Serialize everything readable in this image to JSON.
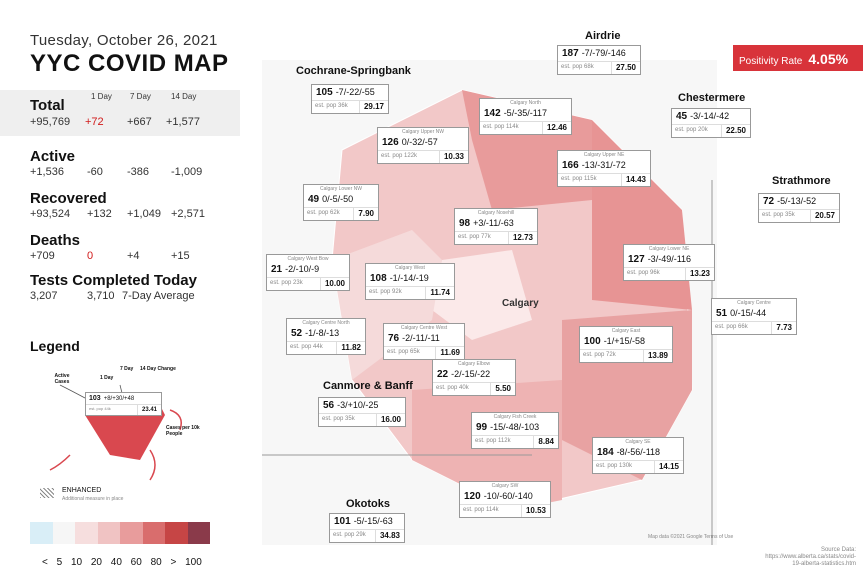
{
  "header": {
    "date": "Tuesday, October 26, 2021",
    "title": "YYC COVID MAP"
  },
  "stats": {
    "col_headers": [
      "1 Day",
      "7 Day",
      "14 Day"
    ],
    "total": {
      "label": "Total",
      "value": "+95,769",
      "d1": "+72",
      "d7": "+667",
      "d14": "+1,577"
    },
    "active": {
      "label": "Active",
      "value": "+1,536",
      "d1": "-60",
      "d7": "-386",
      "d14": "-1,009"
    },
    "recovered": {
      "label": "Recovered",
      "value": "+93,524",
      "d1": "+132",
      "d7": "+1,049",
      "d14": "+2,571"
    },
    "deaths": {
      "label": "Deaths",
      "value": "+709",
      "d1": "0",
      "d7": "+4",
      "d14": "+15"
    },
    "tests": {
      "label": "Tests Completed Today",
      "value": "3,207",
      "avg": "3,710",
      "avg_label": "7-Day Average"
    }
  },
  "legend": {
    "title": "Legend",
    "active_cases": "Active Cases",
    "one_day": "1 Day",
    "seven_day": "7 Day",
    "fourteen_day": "14 Day Change",
    "sample_main": "103",
    "sample_changes": "+8/+30/+48",
    "sample_pop": "est. pop 44k",
    "sample_rate": "23.41",
    "cases_per": "Cases per 10k People",
    "enhanced": "ENHANCED",
    "enhanced_sub": "Additional measure in place",
    "ramp_colors": [
      "#d9eef7",
      "#f6f6f6",
      "#f6dede",
      "#f0c3c3",
      "#e89c9c",
      "#d96d6d",
      "#c64545",
      "#8a3a4a",
      "#3a3a3a"
    ],
    "ramp_labels": "< 5 10 20 40 60 80 > 100"
  },
  "positivity": {
    "label": "Positivity Rate",
    "value": "4.05%"
  },
  "outer_labels": {
    "airdrie": "Airdrie",
    "cochrane": "Cochrane-Springbank",
    "chestermere": "Chestermere",
    "strathmore": "Strathmore",
    "canmore": "Canmore & Banff",
    "okotoks": "Okotoks",
    "calgary": "Calgary"
  },
  "regions": [
    {
      "id": "airdrie",
      "name": "",
      "cases": "187",
      "changes": "-7/-79/-146",
      "pop": "est. pop 68k",
      "rate": "27.50"
    },
    {
      "id": "cochrane",
      "name": "",
      "cases": "105",
      "changes": "-7/-22/-55",
      "pop": "est. pop 36k",
      "rate": "29.17"
    },
    {
      "id": "chestermere",
      "name": "",
      "cases": "45",
      "changes": "-3/-14/-42",
      "pop": "est. pop 20k",
      "rate": "22.50"
    },
    {
      "id": "strathmore",
      "name": "",
      "cases": "72",
      "changes": "-5/-13/-52",
      "pop": "est. pop 35k",
      "rate": "20.57"
    },
    {
      "id": "north",
      "name": "Calgary North",
      "cases": "142",
      "changes": "-5/-35/-117",
      "pop": "est. pop 114k",
      "rate": "12.46"
    },
    {
      "id": "uppernw",
      "name": "Calgary Upper NW",
      "cases": "126",
      "changes": "0/-32/-57",
      "pop": "est. pop 122k",
      "rate": "10.33"
    },
    {
      "id": "upperne",
      "name": "Calgary Upper NE",
      "cases": "166",
      "changes": "-13/-31/-72",
      "pop": "est. pop 115k",
      "rate": "14.43"
    },
    {
      "id": "lowernw",
      "name": "Calgary Lower NW",
      "cases": "49",
      "changes": "0/-5/-50",
      "pop": "est. pop 62k",
      "rate": "7.90"
    },
    {
      "id": "nosehill",
      "name": "Calgary Nosehill",
      "cases": "98",
      "changes": "+3/-11/-63",
      "pop": "est. pop 77k",
      "rate": "12.73"
    },
    {
      "id": "lowerne",
      "name": "Calgary Lower NE",
      "cases": "127",
      "changes": "-3/-49/-116",
      "pop": "est. pop 96k",
      "rate": "13.23"
    },
    {
      "id": "westbow",
      "name": "Calgary West Bow",
      "cases": "21",
      "changes": "-2/-10/-9",
      "pop": "est. pop 23k",
      "rate": "10.00"
    },
    {
      "id": "west",
      "name": "Calgary West",
      "cases": "108",
      "changes": "-1/-14/-19",
      "pop": "est. pop 92k",
      "rate": "11.74"
    },
    {
      "id": "centre",
      "name": "Calgary Centre",
      "cases": "51",
      "changes": "0/-15/-44",
      "pop": "est. pop 66k",
      "rate": "7.73"
    },
    {
      "id": "centrenorth",
      "name": "Calgary Centre North",
      "cases": "52",
      "changes": "-1/-8/-13",
      "pop": "est. pop 44k",
      "rate": "11.82"
    },
    {
      "id": "centrewest",
      "name": "Calgary Centre West",
      "cases": "76",
      "changes": "-2/-11/-11",
      "pop": "est. pop 65k",
      "rate": "11.69"
    },
    {
      "id": "east",
      "name": "Calgary East",
      "cases": "100",
      "changes": "-1/+15/-58",
      "pop": "est. pop 72k",
      "rate": "13.89"
    },
    {
      "id": "elbow",
      "name": "Calgary Elbow",
      "cases": "22",
      "changes": "-2/-15/-22",
      "pop": "est. pop 40k",
      "rate": "5.50"
    },
    {
      "id": "canmore",
      "name": "",
      "cases": "56",
      "changes": "-3/+10/-25",
      "pop": "est. pop 35k",
      "rate": "16.00"
    },
    {
      "id": "fishcreek",
      "name": "Calgary Fish Creek",
      "cases": "99",
      "changes": "-15/-48/-103",
      "pop": "est. pop 112k",
      "rate": "8.84"
    },
    {
      "id": "se",
      "name": "Calgary SE",
      "cases": "184",
      "changes": "-8/-56/-118",
      "pop": "est. pop 130k",
      "rate": "14.15"
    },
    {
      "id": "sw",
      "name": "Calgary SW",
      "cases": "120",
      "changes": "-10/-60/-140",
      "pop": "est. pop 114k",
      "rate": "10.53"
    },
    {
      "id": "okotoks",
      "name": "",
      "cases": "101",
      "changes": "-5/-15/-63",
      "pop": "est. pop 29k",
      "rate": "34.83"
    }
  ],
  "source": "Source Data: https://www.alberta.ca/stats/covid-19-alberta-statistics.htm",
  "map_credit": "Map data ©2021 Google   Terms of Use"
}
